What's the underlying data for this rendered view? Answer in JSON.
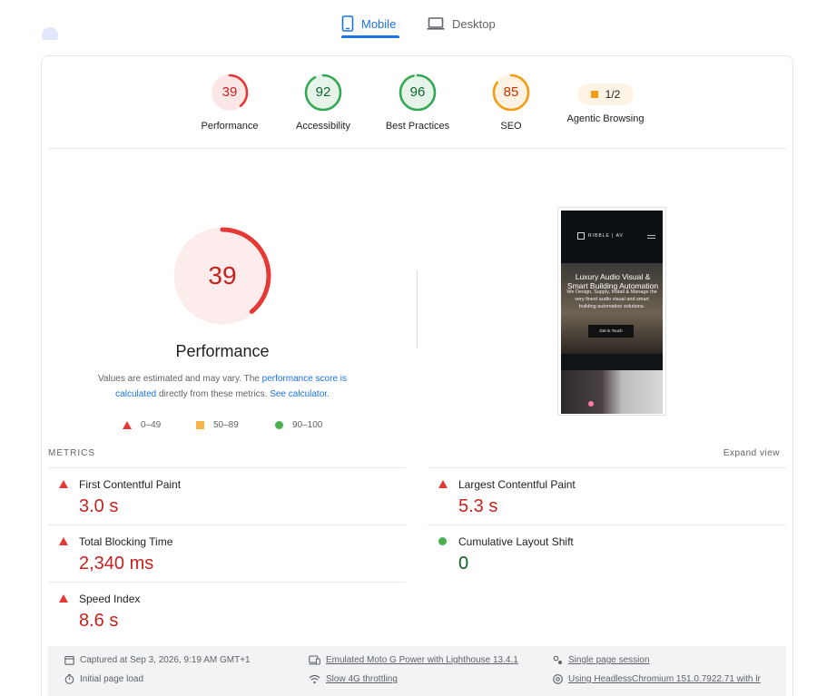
{
  "tabs": [
    {
      "label": "Mobile",
      "active": true
    },
    {
      "label": "Desktop",
      "active": false
    }
  ],
  "gauges": [
    {
      "score": "39",
      "label": "Performance",
      "color": "#e53935",
      "fraction": 0.39
    },
    {
      "score": "92",
      "label": "Accessibility",
      "color": "#34a853",
      "fraction": 0.92
    },
    {
      "score": "96",
      "label": "Best Practices",
      "color": "#34a853",
      "fraction": 0.96
    },
    {
      "score": "85",
      "label": "SEO",
      "color": "#f39c12",
      "fraction": 0.85
    },
    {
      "score": "1/2",
      "label": "Agentic Browsing"
    }
  ],
  "performance": {
    "score": "39",
    "fraction": 0.39,
    "title": "Performance",
    "desc_prefix": "Values are estimated and may vary. The ",
    "desc_link1": "performance score is calculated",
    "desc_mid": " directly from these metrics. ",
    "desc_link2": "See calculator."
  },
  "legend": {
    "fail": "0–49",
    "average": "50–89",
    "pass": "90–100"
  },
  "thumbnail": {
    "brand": "RIBBLE | AV",
    "headline": "Luxury Audio Visual & Smart Building Automation",
    "subtext": "We Design, Supply, Install & Manage the very finest audio visual and smart building automation solutions.",
    "cta": "Get in Touch"
  },
  "metrics": {
    "title": "METRICS",
    "expand": "Expand view",
    "items": [
      {
        "name": "First Contentful Paint",
        "value": "3.0 s",
        "status": "fail"
      },
      {
        "name": "Largest Contentful Paint",
        "value": "5.3 s",
        "status": "fail"
      },
      {
        "name": "Total Blocking Time",
        "value": "2,340 ms",
        "status": "fail"
      },
      {
        "name": "Cumulative Layout Shift",
        "value": "0",
        "status": "pass"
      },
      {
        "name": "Speed Index",
        "value": "8.6 s",
        "status": "fail"
      }
    ]
  },
  "footer": {
    "captured": "Captured at Sep 3, 2026, 9:19 AM GMT+1",
    "device": "Emulated Moto G Power with Lighthouse 13.4.1",
    "session": "Single page session",
    "load": "Initial page load",
    "throttling": "Slow 4G throttling",
    "browser": "Using HeadlessChromium 151.0.7922.71 with lr"
  },
  "colors": {
    "accent": "#1a73e8",
    "fail": "#e53935",
    "average": "#f39c12",
    "pass": "#34a853"
  }
}
